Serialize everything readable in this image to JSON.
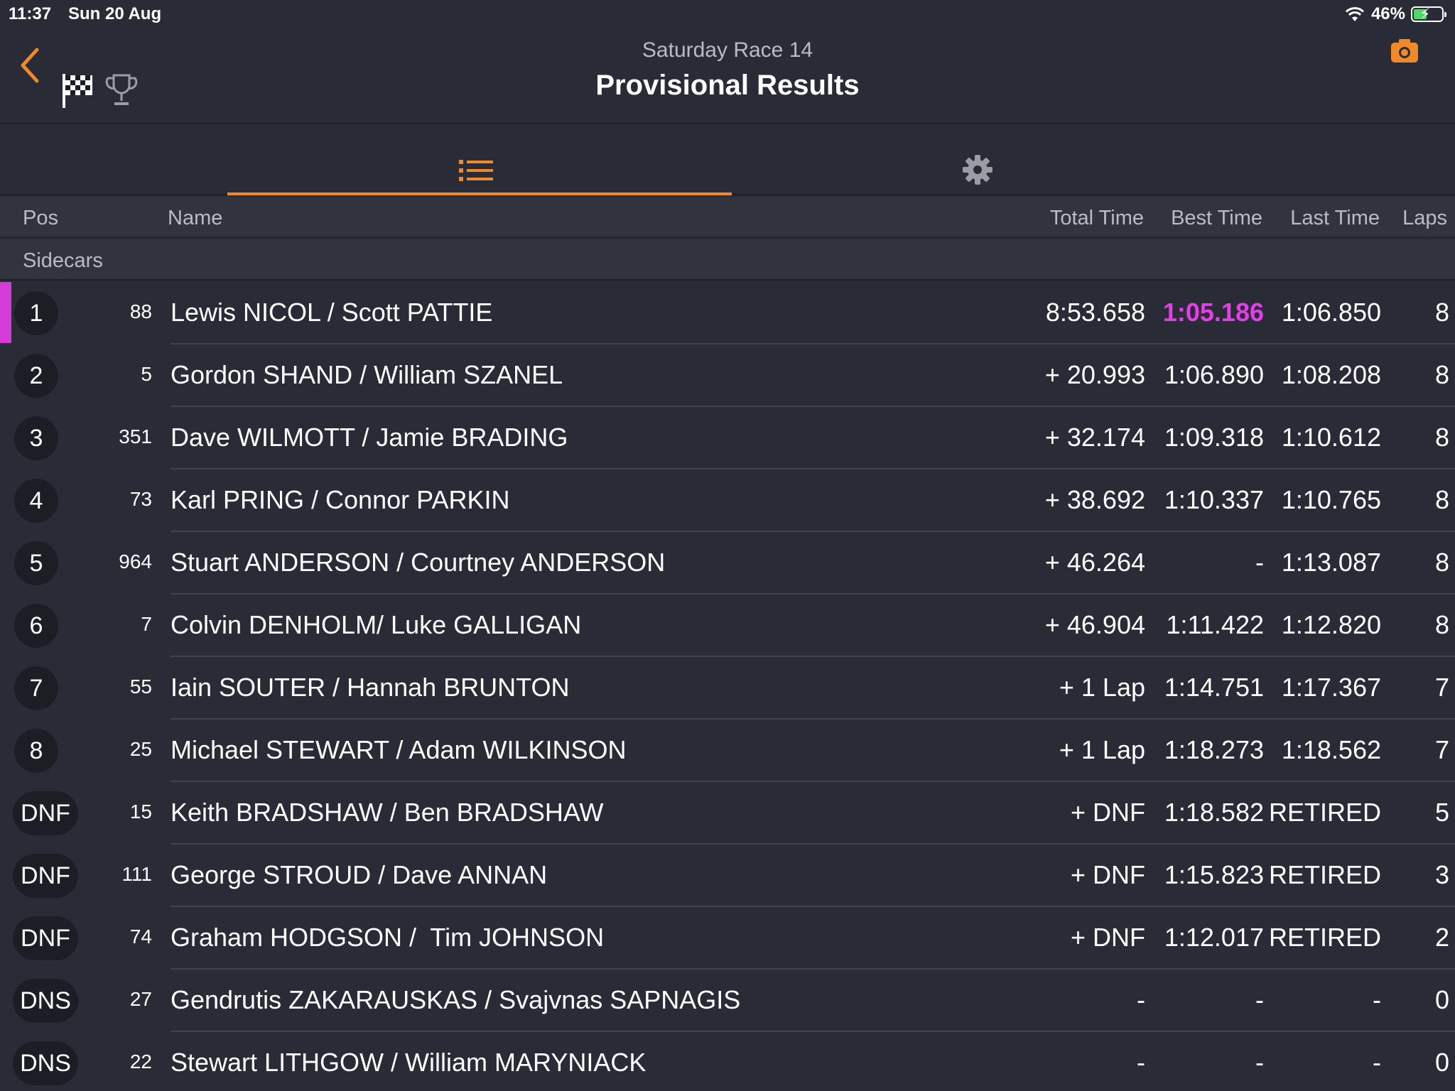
{
  "status_bar": {
    "time": "11:37",
    "date": "Sun 20 Aug",
    "battery": "46%",
    "battery_level": 0.46
  },
  "header": {
    "subtitle": "Saturday Race 14",
    "title": "Provisional Results"
  },
  "columns": {
    "pos": "Pos",
    "name": "Name",
    "total": "Total Time",
    "best": "Best Time",
    "last": "Last Time",
    "laps": "Laps"
  },
  "section": "Sidecars",
  "colors": {
    "accent": "#f0892a",
    "fastest": "#e53ee9",
    "background": "#292c36"
  },
  "rows": [
    {
      "pos": "1",
      "num": "88",
      "name": "Lewis NICOL / Scott PATTIE",
      "total": "8:53.658",
      "best": "1:05.186",
      "last": "1:06.850",
      "laps": "8",
      "fastest": true
    },
    {
      "pos": "2",
      "num": "5",
      "name": "Gordon SHAND / William SZANEL",
      "total": "+ 20.993",
      "best": "1:06.890",
      "last": "1:08.208",
      "laps": "8"
    },
    {
      "pos": "3",
      "num": "351",
      "name": "Dave WILMOTT / Jamie BRADING",
      "total": "+ 32.174",
      "best": "1:09.318",
      "last": "1:10.612",
      "laps": "8"
    },
    {
      "pos": "4",
      "num": "73",
      "name": "Karl PRING / Connor PARKIN",
      "total": "+ 38.692",
      "best": "1:10.337",
      "last": "1:10.765",
      "laps": "8"
    },
    {
      "pos": "5",
      "num": "964",
      "name": "Stuart ANDERSON / Courtney ANDERSON",
      "total": "+ 46.264",
      "best": "-",
      "last": "1:13.087",
      "laps": "8"
    },
    {
      "pos": "6",
      "num": "7",
      "name": "Colvin DENHOLM/ Luke GALLIGAN",
      "total": "+ 46.904",
      "best": "1:11.422",
      "last": "1:12.820",
      "laps": "8"
    },
    {
      "pos": "7",
      "num": "55",
      "name": "Iain SOUTER / Hannah BRUNTON",
      "total": "+ 1 Lap",
      "best": "1:14.751",
      "last": "1:17.367",
      "laps": "7"
    },
    {
      "pos": "8",
      "num": "25",
      "name": "Michael STEWART / Adam WILKINSON",
      "total": "+ 1 Lap",
      "best": "1:18.273",
      "last": "1:18.562",
      "laps": "7"
    },
    {
      "pos": "DNF",
      "num": "15",
      "name": "Keith BRADSHAW / Ben BRADSHAW",
      "total": "+ DNF",
      "best": "1:18.582",
      "last": "RETIRED",
      "laps": "5"
    },
    {
      "pos": "DNF",
      "num": "111",
      "name": "George STROUD / Dave ANNAN",
      "total": "+ DNF",
      "best": "1:15.823",
      "last": "RETIRED",
      "laps": "3"
    },
    {
      "pos": "DNF",
      "num": "74",
      "name": "Graham HODGSON /  Tim JOHNSON",
      "total": "+ DNF",
      "best": "1:12.017",
      "last": "RETIRED",
      "laps": "2"
    },
    {
      "pos": "DNS",
      "num": "27",
      "name": "Gendrutis ZAKARAUSKAS / Svajvnas SAPNAGIS",
      "total": "-",
      "best": "-",
      "last": "-",
      "laps": "0"
    },
    {
      "pos": "DNS",
      "num": "22",
      "name": "Stewart LITHGOW / William MARYNIACK",
      "total": "-",
      "best": "-",
      "last": "-",
      "laps": "0"
    }
  ]
}
